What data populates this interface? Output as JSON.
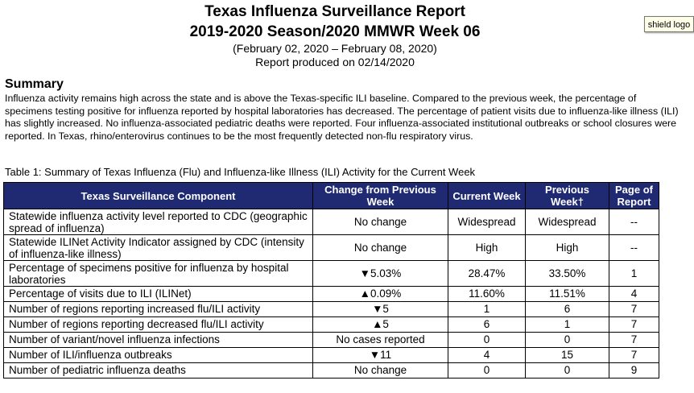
{
  "header": {
    "title_line1": "Texas Influenza Surveillance Report",
    "title_line2": "2019-2020 Season/2020 MMWR Week 06",
    "date_range": "(February 02, 2020 – February 08, 2020)",
    "produced": "Report produced on 02/14/2020"
  },
  "logo": {
    "tooltip": "shield logo"
  },
  "summary": {
    "title": "Summary",
    "text": "Influenza activity remains high across the state and is above the Texas-specific ILI baseline. Compared to the previous week, the percentage of specimens testing positive for influenza reported by hospital laboratories has decreased. The percentage of patient visits due to influenza-like illness (ILI) has slightly increased. No influenza-associated pediatric deaths were reported. Four influenza-associated institutional outbreaks or school closures were reported.  In Texas, rhino/enterovirus continues to be the most frequently detected non-flu respiratory virus."
  },
  "table": {
    "caption": "Table 1: Summary of Texas Influenza (Flu) and Influenza-like Illness (ILI) Activity for the Current Week",
    "headers": {
      "component": "Texas Surveillance Component",
      "change": "Change from Previous Week",
      "current": "Current Week",
      "previous": "Previous Week†",
      "page": "Page of Report"
    },
    "rows": [
      {
        "component": "Statewide influenza activity level reported to CDC (geographic spread of influenza)",
        "change": "No change",
        "current": "Widespread",
        "previous": "Widespread",
        "page": "--"
      },
      {
        "component": "Statewide ILINet Activity Indicator assigned by CDC (intensity of influenza-like illness)",
        "change": "No change",
        "current": "High",
        "previous": "High",
        "page": "--"
      },
      {
        "component": "Percentage of specimens positive for influenza by hospital laboratories",
        "change": "▼5.03%",
        "current": "28.47%",
        "previous": "33.50%",
        "page": "1"
      },
      {
        "component": "Percentage of visits due to ILI (ILINet)",
        "change": "▲0.09%",
        "current": "11.60%",
        "previous": "11.51%",
        "page": "4"
      },
      {
        "component": "Number of regions reporting increased flu/ILI activity",
        "change": "▼5",
        "current": "1",
        "previous": "6",
        "page": "7"
      },
      {
        "component": "Number of regions reporting decreased flu/ILI activity",
        "change": "▲5",
        "current": "6",
        "previous": "1",
        "page": "7"
      },
      {
        "component": "Number of variant/novel influenza infections",
        "change": "No cases reported",
        "current": "0",
        "previous": "0",
        "page": "7"
      },
      {
        "component": "Number of ILI/influenza outbreaks",
        "change": "▼11",
        "current": "4",
        "previous": "15",
        "page": "7"
      },
      {
        "component": "Number of pediatric influenza deaths",
        "change": "No change",
        "current": "0",
        "previous": "0",
        "page": "9"
      }
    ]
  }
}
